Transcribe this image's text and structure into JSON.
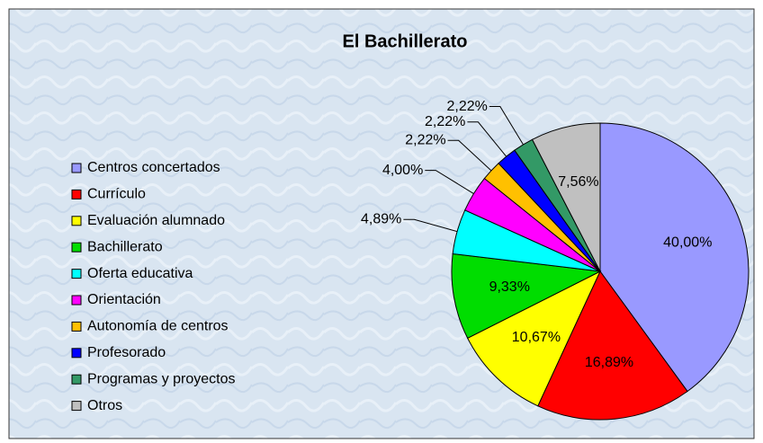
{
  "chart_data": {
    "type": "pie",
    "title": "El Bachillerato",
    "categories": [
      "Centros concertados",
      "Currículo",
      "Evaluación alumnado",
      "Bachillerato",
      "Oferta educativa",
      "Orientación",
      "Autonomía de centros",
      "Profesorado",
      "Programas y proyectos",
      "Otros"
    ],
    "values": [
      40,
      16.89,
      10.67,
      9.33,
      4.89,
      4,
      2.22,
      2.22,
      2.22,
      7.56
    ],
    "value_labels": [
      "40,00%",
      "16,89%",
      "10,67%",
      "9,33%",
      "4,89%",
      "4,00%",
      "2,22%",
      "2,22%",
      "2,22%",
      "7,56%"
    ],
    "colors": [
      "#9999ff",
      "#ff0000",
      "#ffff00",
      "#00dd00",
      "#00ffff",
      "#ff00ff",
      "#ffc000",
      "#0000ff",
      "#339966",
      "#c0c0c0"
    ],
    "legend": "left"
  }
}
